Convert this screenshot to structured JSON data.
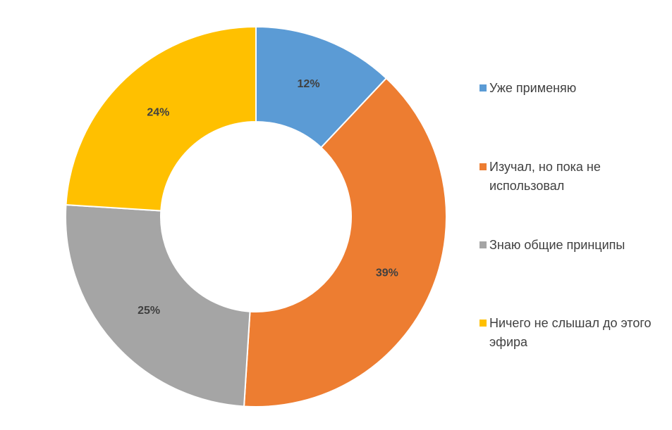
{
  "chart_data": {
    "type": "donut",
    "categories": [
      "Уже применяю",
      "Изучал, но пока не использовал",
      "Знаю общие принципы",
      "Ничего не слышал до этого эфира"
    ],
    "values": [
      12,
      39,
      25,
      24
    ],
    "value_labels": [
      "12%",
      "39%",
      "25%",
      "24%"
    ],
    "colors": [
      "#5b9bd5",
      "#ed7d31",
      "#a5a5a5",
      "#ffc000"
    ],
    "legend": "right"
  }
}
